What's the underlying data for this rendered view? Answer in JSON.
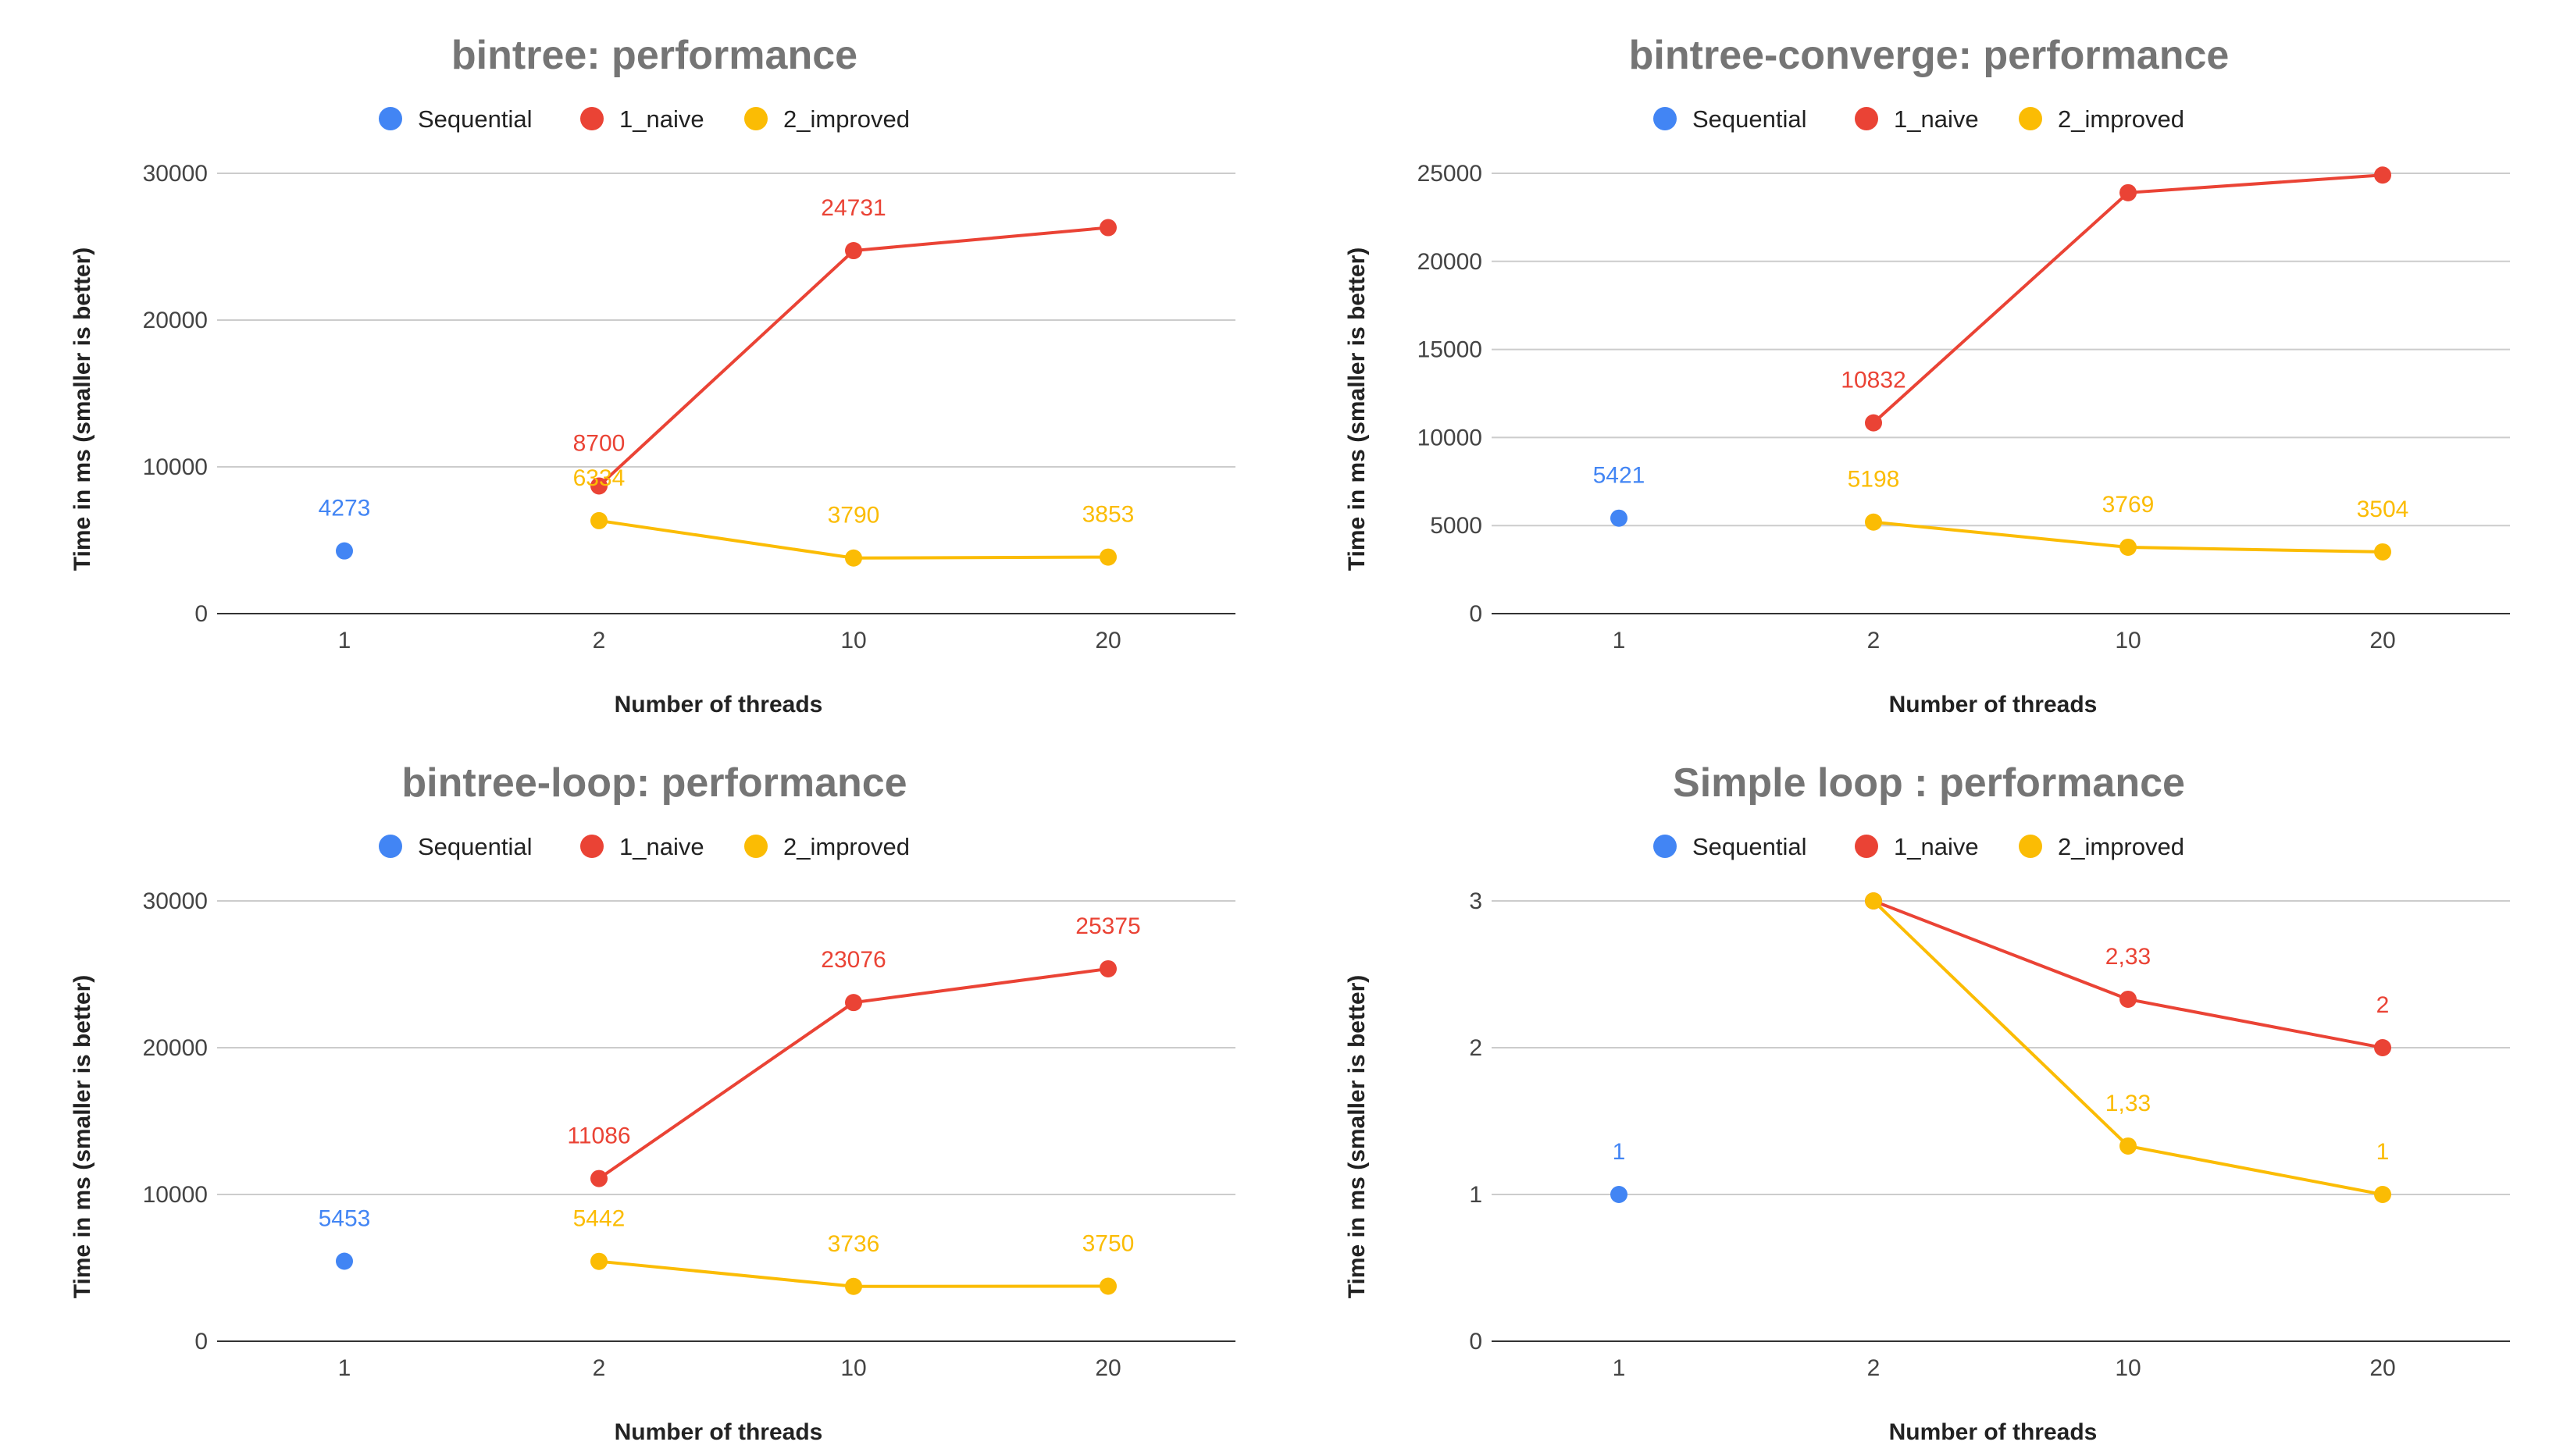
{
  "chart_data": [
    {
      "id": "bintree",
      "type": "line",
      "title": "bintree: performance",
      "xlabel": "Number of threads",
      "ylabel": "Time in ms (smaller is better)",
      "categories": [
        "1",
        "2",
        "10",
        "20"
      ],
      "yticks": [
        "0",
        "10000",
        "20000",
        "30000"
      ],
      "ylim": [
        0,
        30000
      ],
      "legend_position": "top",
      "grid": true,
      "series": [
        {
          "name": "Sequential",
          "color": "#4285F4",
          "values": [
            4273,
            null,
            null,
            null
          ],
          "labels": [
            "4273",
            "",
            "",
            ""
          ]
        },
        {
          "name": "1_naive",
          "color": "#EA4335",
          "values": [
            null,
            8700,
            24731,
            26300
          ],
          "labels": [
            "",
            "8700",
            "24731",
            ""
          ]
        },
        {
          "name": "2_improved",
          "color": "#FBBC04",
          "values": [
            null,
            6334,
            3790,
            3853
          ],
          "labels": [
            "",
            "6334",
            "3790",
            "3853"
          ]
        }
      ]
    },
    {
      "id": "bintree-converge",
      "type": "line",
      "title": "bintree-converge: performance",
      "xlabel": "Number of threads",
      "ylabel": "Time in ms (smaller is better)",
      "categories": [
        "1",
        "2",
        "10",
        "20"
      ],
      "yticks": [
        "0",
        "5000",
        "10000",
        "15000",
        "20000",
        "25000"
      ],
      "ylim": [
        0,
        25000
      ],
      "legend_position": "top",
      "grid": true,
      "series": [
        {
          "name": "Sequential",
          "color": "#4285F4",
          "values": [
            5421,
            null,
            null,
            null
          ],
          "labels": [
            "5421",
            "",
            "",
            ""
          ]
        },
        {
          "name": "1_naive",
          "color": "#EA4335",
          "values": [
            null,
            10832,
            23900,
            24900
          ],
          "labels": [
            "",
            "10832",
            "",
            ""
          ]
        },
        {
          "name": "2_improved",
          "color": "#FBBC04",
          "values": [
            null,
            5198,
            3769,
            3504
          ],
          "labels": [
            "",
            "5198",
            "3769",
            "3504"
          ]
        }
      ]
    },
    {
      "id": "bintree-loop",
      "type": "line",
      "title": "bintree-loop: performance",
      "xlabel": "Number of threads",
      "ylabel": "Time in ms (smaller is better)",
      "categories": [
        "1",
        "2",
        "10",
        "20"
      ],
      "yticks": [
        "0",
        "10000",
        "20000",
        "30000"
      ],
      "ylim": [
        0,
        30000
      ],
      "legend_position": "top",
      "grid": true,
      "series": [
        {
          "name": "Sequential",
          "color": "#4285F4",
          "values": [
            5453,
            null,
            null,
            null
          ],
          "labels": [
            "5453",
            "",
            "",
            ""
          ]
        },
        {
          "name": "1_naive",
          "color": "#EA4335",
          "values": [
            null,
            11086,
            23076,
            25375
          ],
          "labels": [
            "",
            "11086",
            "23076",
            "25375"
          ]
        },
        {
          "name": "2_improved",
          "color": "#FBBC04",
          "values": [
            null,
            5442,
            3736,
            3750
          ],
          "labels": [
            "",
            "5442",
            "3736",
            "3750"
          ]
        }
      ]
    },
    {
      "id": "simple-loop",
      "type": "line",
      "title": "Simple loop : performance",
      "xlabel": "Number of threads",
      "ylabel": "Time in ms (smaller is better)",
      "categories": [
        "1",
        "2",
        "10",
        "20"
      ],
      "yticks": [
        "0",
        "1",
        "2",
        "3"
      ],
      "ylim": [
        0,
        3
      ],
      "legend_position": "top",
      "grid": true,
      "series": [
        {
          "name": "Sequential",
          "color": "#4285F4",
          "values": [
            1,
            null,
            null,
            null
          ],
          "labels": [
            "1",
            "",
            "",
            ""
          ]
        },
        {
          "name": "1_naive",
          "color": "#EA4335",
          "values": [
            null,
            3,
            2.33,
            2
          ],
          "labels": [
            "",
            "",
            "2,33",
            "2"
          ]
        },
        {
          "name": "2_improved",
          "color": "#FBBC04",
          "values": [
            null,
            3,
            1.33,
            1
          ],
          "labels": [
            "",
            "",
            "1,33",
            "1"
          ]
        }
      ]
    }
  ]
}
